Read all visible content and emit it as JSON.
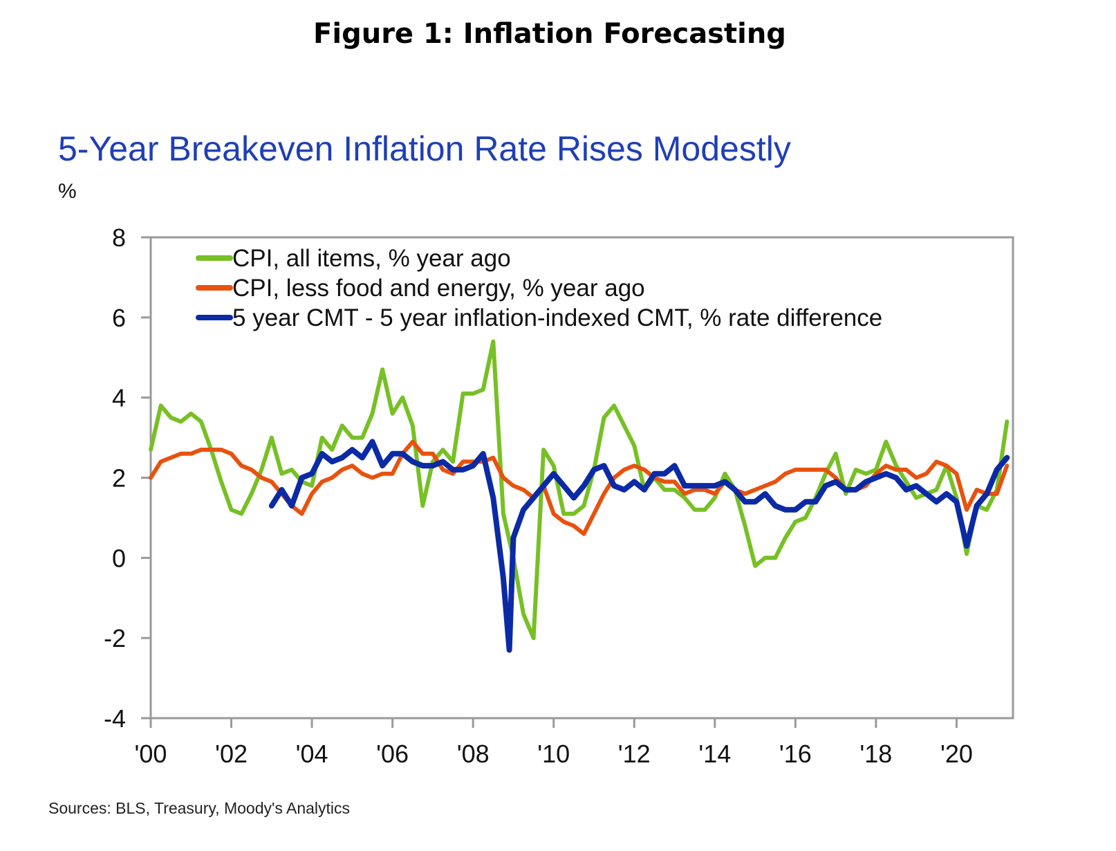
{
  "figure_title": "Figure 1: Inflation Forecasting",
  "chart_data": {
    "type": "line",
    "title": "5-Year Breakeven Inflation Rate Rises Modestly",
    "ylabel": "%",
    "xlabel": "",
    "ylim": [
      -4,
      8
    ],
    "yticks": [
      -4,
      -2,
      0,
      2,
      4,
      6,
      8
    ],
    "xlim": [
      2000,
      2021.4
    ],
    "xticks": [
      2000,
      2002,
      2004,
      2006,
      2008,
      2010,
      2012,
      2014,
      2016,
      2018,
      2020
    ],
    "xtick_labels": [
      "'00",
      "'02",
      "'04",
      "'06",
      "'08",
      "'10",
      "'12",
      "'14",
      "'16",
      "'18",
      "'20"
    ],
    "grid": false,
    "legend_placement": "top-left",
    "series": [
      {
        "name": "CPI, all items, % year ago",
        "color": "#77c025",
        "x": [
          2000,
          2000.25,
          2000.5,
          2000.75,
          2001,
          2001.25,
          2001.5,
          2001.75,
          2002,
          2002.25,
          2002.5,
          2002.75,
          2003,
          2003.25,
          2003.5,
          2003.75,
          2004,
          2004.25,
          2004.5,
          2004.75,
          2005,
          2005.25,
          2005.5,
          2005.75,
          2006,
          2006.25,
          2006.5,
          2006.75,
          2007,
          2007.25,
          2007.5,
          2007.75,
          2008,
          2008.25,
          2008.5,
          2008.75,
          2009,
          2009.25,
          2009.5,
          2009.75,
          2010,
          2010.25,
          2010.5,
          2010.75,
          2011,
          2011.25,
          2011.5,
          2011.75,
          2012,
          2012.25,
          2012.5,
          2012.75,
          2013,
          2013.25,
          2013.5,
          2013.75,
          2014,
          2014.25,
          2014.5,
          2014.75,
          2015,
          2015.25,
          2015.5,
          2015.75,
          2016,
          2016.25,
          2016.5,
          2016.75,
          2017,
          2017.25,
          2017.5,
          2017.75,
          2018,
          2018.25,
          2018.5,
          2018.75,
          2019,
          2019.25,
          2019.5,
          2019.75,
          2020,
          2020.25,
          2020.5,
          2020.75,
          2021,
          2021.25
        ],
        "values": [
          2.7,
          3.8,
          3.5,
          3.4,
          3.6,
          3.4,
          2.7,
          1.9,
          1.2,
          1.1,
          1.6,
          2.2,
          3.0,
          2.1,
          2.2,
          1.9,
          1.8,
          3.0,
          2.7,
          3.3,
          3.0,
          3.0,
          3.6,
          4.7,
          3.6,
          4.0,
          3.3,
          1.3,
          2.4,
          2.7,
          2.4,
          4.1,
          4.1,
          4.2,
          5.4,
          1.1,
          0.0,
          -1.4,
          -2.0,
          2.7,
          2.3,
          1.1,
          1.1,
          1.3,
          2.2,
          3.5,
          3.8,
          3.3,
          2.8,
          1.7,
          2.0,
          1.7,
          1.7,
          1.5,
          1.2,
          1.2,
          1.5,
          2.1,
          1.7,
          0.8,
          -0.2,
          0.0,
          0.0,
          0.5,
          0.9,
          1.0,
          1.5,
          2.1,
          2.6,
          1.6,
          2.2,
          2.1,
          2.2,
          2.9,
          2.3,
          1.9,
          1.5,
          1.6,
          1.7,
          2.3,
          1.5,
          0.1,
          1.3,
          1.2,
          1.7,
          3.4
        ]
      },
      {
        "name": "CPI, less food and energy, % year ago",
        "color": "#e8520e",
        "x": [
          2000,
          2000.25,
          2000.5,
          2000.75,
          2001,
          2001.25,
          2001.5,
          2001.75,
          2002,
          2002.25,
          2002.5,
          2002.75,
          2003,
          2003.25,
          2003.5,
          2003.75,
          2004,
          2004.25,
          2004.5,
          2004.75,
          2005,
          2005.25,
          2005.5,
          2005.75,
          2006,
          2006.25,
          2006.5,
          2006.75,
          2007,
          2007.25,
          2007.5,
          2007.75,
          2008,
          2008.25,
          2008.5,
          2008.75,
          2009,
          2009.25,
          2009.5,
          2009.75,
          2010,
          2010.25,
          2010.5,
          2010.75,
          2011,
          2011.25,
          2011.5,
          2011.75,
          2012,
          2012.25,
          2012.5,
          2012.75,
          2013,
          2013.25,
          2013.5,
          2013.75,
          2014,
          2014.25,
          2014.5,
          2014.75,
          2015,
          2015.25,
          2015.5,
          2015.75,
          2016,
          2016.25,
          2016.5,
          2016.75,
          2017,
          2017.25,
          2017.5,
          2017.75,
          2018,
          2018.25,
          2018.5,
          2018.75,
          2019,
          2019.25,
          2019.5,
          2019.75,
          2020,
          2020.25,
          2020.5,
          2020.75,
          2021,
          2021.25
        ],
        "values": [
          2.0,
          2.4,
          2.5,
          2.6,
          2.6,
          2.7,
          2.7,
          2.7,
          2.6,
          2.3,
          2.2,
          2.0,
          1.9,
          1.6,
          1.3,
          1.1,
          1.6,
          1.9,
          2.0,
          2.2,
          2.3,
          2.1,
          2.0,
          2.1,
          2.1,
          2.6,
          2.9,
          2.6,
          2.6,
          2.2,
          2.1,
          2.4,
          2.4,
          2.4,
          2.5,
          2.0,
          1.8,
          1.7,
          1.5,
          1.8,
          1.1,
          0.9,
          0.8,
          0.6,
          1.1,
          1.6,
          2.0,
          2.2,
          2.3,
          2.2,
          2.0,
          1.9,
          1.9,
          1.6,
          1.7,
          1.7,
          1.6,
          1.9,
          1.7,
          1.6,
          1.7,
          1.8,
          1.9,
          2.1,
          2.2,
          2.2,
          2.2,
          2.2,
          2.0,
          1.7,
          1.7,
          1.8,
          2.1,
          2.3,
          2.2,
          2.2,
          2.0,
          2.1,
          2.4,
          2.3,
          2.1,
          1.2,
          1.7,
          1.6,
          1.6,
          2.3
        ]
      },
      {
        "name": "5 year CMT - 5 year inflation-indexed CMT, % rate difference",
        "color": "#0b2aa6",
        "x": [
          2003,
          2003.25,
          2003.5,
          2003.75,
          2004,
          2004.25,
          2004.5,
          2004.75,
          2005,
          2005.25,
          2005.5,
          2005.75,
          2006,
          2006.25,
          2006.5,
          2006.75,
          2007,
          2007.25,
          2007.5,
          2007.75,
          2008,
          2008.25,
          2008.5,
          2008.75,
          2008.9,
          2009,
          2009.25,
          2009.5,
          2009.75,
          2010,
          2010.25,
          2010.5,
          2010.75,
          2011,
          2011.25,
          2011.5,
          2011.75,
          2012,
          2012.25,
          2012.5,
          2012.75,
          2013,
          2013.25,
          2013.5,
          2013.75,
          2014,
          2014.25,
          2014.5,
          2014.75,
          2015,
          2015.25,
          2015.5,
          2015.75,
          2016,
          2016.25,
          2016.5,
          2016.75,
          2017,
          2017.25,
          2017.5,
          2017.75,
          2018,
          2018.25,
          2018.5,
          2018.75,
          2019,
          2019.25,
          2019.5,
          2019.75,
          2020,
          2020.25,
          2020.5,
          2020.75,
          2021,
          2021.25
        ],
        "values": [
          1.3,
          1.7,
          1.3,
          2.0,
          2.1,
          2.6,
          2.4,
          2.5,
          2.7,
          2.5,
          2.9,
          2.3,
          2.6,
          2.6,
          2.4,
          2.3,
          2.3,
          2.4,
          2.2,
          2.2,
          2.3,
          2.6,
          1.5,
          -0.5,
          -2.3,
          0.5,
          1.2,
          1.5,
          1.8,
          2.1,
          1.8,
          1.5,
          1.8,
          2.2,
          2.3,
          1.8,
          1.7,
          1.9,
          1.7,
          2.1,
          2.1,
          2.3,
          1.8,
          1.8,
          1.8,
          1.8,
          1.9,
          1.7,
          1.4,
          1.4,
          1.6,
          1.3,
          1.2,
          1.2,
          1.4,
          1.4,
          1.8,
          1.9,
          1.7,
          1.7,
          1.9,
          2.0,
          2.1,
          2.0,
          1.7,
          1.8,
          1.6,
          1.4,
          1.6,
          1.4,
          0.3,
          1.3,
          1.6,
          2.2,
          2.5
        ]
      }
    ],
    "source": "Sources: BLS, Treasury, Moody's Analytics"
  }
}
